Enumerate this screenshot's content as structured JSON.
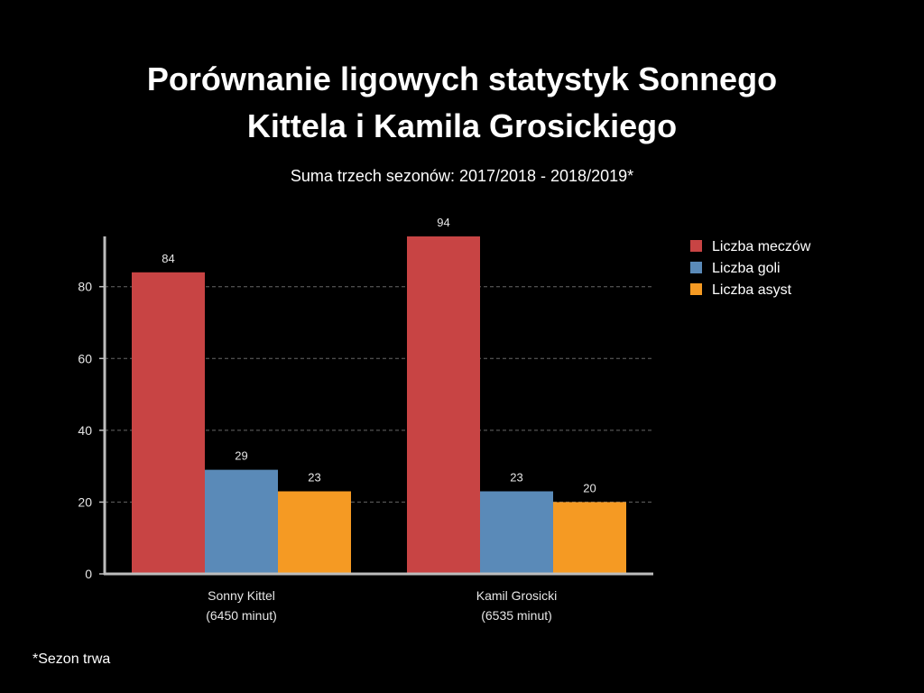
{
  "chart_data": {
    "type": "bar",
    "title_lines": [
      "Porównanie ligowych statystyk Sonnego",
      "Kittela i Kamila Grosickiego"
    ],
    "subtitle": "Suma trzech sezonów: 2017/2018 - 2018/2019*",
    "categories": [
      [
        "Sonny Kittel",
        "(6450 minut)"
      ],
      [
        "Kamil Grosicki",
        "(6535 minut)"
      ]
    ],
    "series": [
      {
        "name": "Liczba meczów",
        "color": "#c84444",
        "values": [
          84,
          94
        ]
      },
      {
        "name": "Liczba goli",
        "color": "#5a8ab8",
        "values": [
          29,
          23
        ]
      },
      {
        "name": "Liczba asyst",
        "color": "#f59a23",
        "values": [
          23,
          20
        ]
      }
    ],
    "yticks": [
      0,
      20,
      40,
      60,
      80
    ],
    "ylim": [
      0,
      94
    ],
    "grid": true,
    "legend_position": "top-right",
    "footnote": "*Sezon trwa"
  }
}
